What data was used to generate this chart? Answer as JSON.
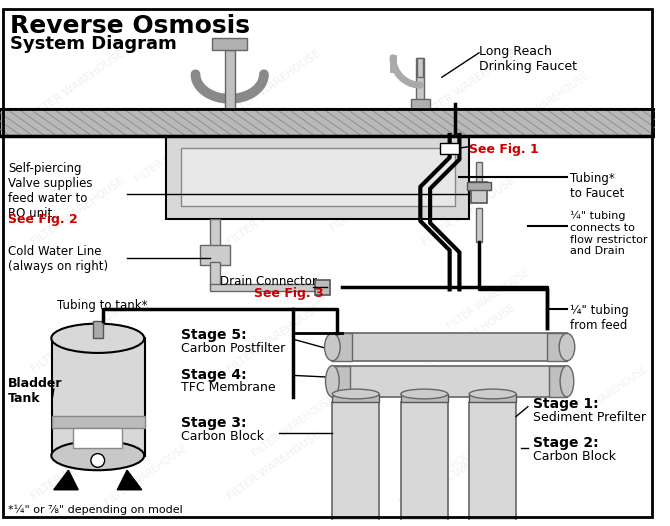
{
  "title_line1": "Reverse Osmosis",
  "title_line2": "System Diagram",
  "bg_color": "#ffffff",
  "border_color": "#000000",
  "watermark_color": "#e8e8e8",
  "watermark_text": "FILTER WAREHOUSE",
  "labels": {
    "long_reach_faucet": "Long Reach\nDrinking Faucet",
    "see_fig1": "See Fig. 1",
    "tubing_to_faucet": "Tubing*\nto Faucet",
    "quarter_tubing_flow": "¼\" tubing\nconnects to\nflow restrictor\nand Drain",
    "quarter_tubing_feed": "¼\" tubing\nfrom feed",
    "self_piercing": "Self-piercing\nValve supplies\nfeed water to\nRO unit.",
    "see_fig2": "See Fig. 2",
    "cold_water": "Cold Water Line\n(always on right)",
    "drain_connector": "Drain Connector",
    "see_fig3": "See Fig. 3",
    "tubing_to_tank": "Tubing to tank*",
    "bladder_tank": "Bladder\nTank",
    "stage5": "Stage 5:",
    "stage5_sub": "Carbon Postfilter",
    "stage4": "Stage 4:",
    "stage4_sub": "TFC Membrane",
    "stage3": "Stage 3:",
    "stage3_sub": "Carbon Block",
    "stage1": "Stage 1:",
    "stage1_sub": "Sediment Prefilter",
    "stage2": "Stage 2:",
    "stage2_sub": "Carbon Block",
    "footnote": "*¼\" or ⅞\" depending on model"
  },
  "colors": {
    "red": "#cc0000",
    "black": "#000000",
    "gray_light": "#cccccc",
    "gray_medium": "#aaaaaa",
    "gray_dark": "#555555",
    "line_color": "#000000",
    "sink_fill": "#d0d0d0",
    "hatch_fill": "#c0c0c0"
  }
}
